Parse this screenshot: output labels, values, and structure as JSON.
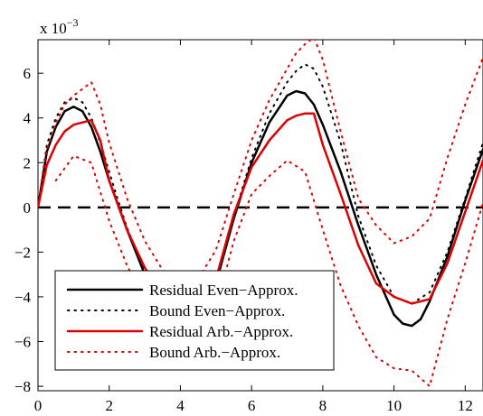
{
  "chart_data": {
    "type": "line",
    "title": "",
    "xlabel": "",
    "ylabel": "",
    "y_multiplier_label": "x 10",
    "y_multiplier_exponent": "−3",
    "xlim": [
      0,
      12.5
    ],
    "ylim": [
      -8.2,
      7.5
    ],
    "x_ticks": [
      0,
      2,
      4,
      6,
      8,
      10,
      12
    ],
    "y_ticks": [
      -8,
      -6,
      -4,
      -2,
      0,
      2,
      4,
      6
    ],
    "x_tick_labels": [
      "0",
      "2",
      "4",
      "6",
      "8",
      "10",
      "12"
    ],
    "y_tick_labels": [
      "−8",
      "−6",
      "−4",
      "−2",
      "0",
      "2",
      "4",
      "6"
    ],
    "grid": false,
    "legend_position": "bottom-left",
    "reference_line": {
      "y": 0,
      "style": "dashed",
      "color": "#000000"
    },
    "series": [
      {
        "name": "Residual Even−Approx.",
        "color": "#000000",
        "style": "solid",
        "x": [
          0,
          0.25,
          0.5,
          0.75,
          1.0,
          1.25,
          1.5,
          1.75,
          2.0,
          2.25,
          2.5,
          3.0,
          3.5,
          4.0,
          4.5,
          5.0,
          5.5,
          6.0,
          6.5,
          7.0,
          7.25,
          7.5,
          7.75,
          8.0,
          8.5,
          9.0,
          9.5,
          10.0,
          10.25,
          10.5,
          10.75,
          11.0,
          11.5,
          12.0,
          12.5
        ],
        "y": [
          0,
          2.5,
          3.6,
          4.3,
          4.5,
          4.3,
          3.6,
          2.5,
          1.2,
          0.1,
          -1.0,
          -3.0,
          -4.6,
          -5.4,
          -5.2,
          -3.4,
          -0.5,
          2.0,
          3.8,
          5.0,
          5.2,
          5.1,
          4.6,
          3.7,
          1.6,
          -0.8,
          -3.0,
          -4.8,
          -5.2,
          -5.3,
          -5.0,
          -4.2,
          -2.2,
          0.3,
          2.6
        ]
      },
      {
        "name": "Bound Even−Approx.",
        "color": "#000000",
        "style": "dotted",
        "x": [
          0,
          0.25,
          0.5,
          0.75,
          1.0,
          1.25,
          1.5,
          1.75,
          2.0,
          2.25,
          2.5,
          3.0,
          3.5,
          4.0,
          4.5,
          5.0,
          5.5,
          6.0,
          6.5,
          7.0,
          7.25,
          7.5,
          7.75,
          8.0,
          8.5,
          9.0,
          9.5,
          10.0,
          10.5,
          11.0,
          11.5,
          12.0,
          12.5
        ],
        "y": [
          0,
          2.8,
          4.0,
          4.7,
          4.9,
          4.7,
          4.0,
          2.9,
          1.6,
          0.3,
          -0.9,
          -2.9,
          -4.5,
          -5.3,
          -5.1,
          -3.3,
          -0.4,
          2.2,
          4.2,
          5.6,
          6.1,
          6.4,
          6.2,
          5.4,
          2.9,
          -0.4,
          -2.6,
          -4.0,
          -4.3,
          -3.8,
          -2.0,
          0.4,
          2.9
        ]
      },
      {
        "name": "Residual Arb.−Approx.",
        "color": "#dd0000",
        "style": "solid",
        "x": [
          0,
          0.25,
          0.5,
          0.75,
          1.0,
          1.25,
          1.5,
          1.75,
          2.0,
          2.5,
          3.0,
          3.5,
          4.0,
          4.5,
          5.0,
          5.5,
          6.0,
          6.5,
          7.0,
          7.25,
          7.5,
          7.75,
          8.0,
          8.5,
          9.0,
          9.5,
          10.0,
          10.5,
          11.0,
          11.5,
          12.0,
          12.5
        ],
        "y": [
          0,
          1.9,
          2.8,
          3.4,
          3.7,
          3.8,
          3.9,
          3.0,
          1.2,
          -1.0,
          -2.7,
          -3.9,
          -4.6,
          -4.5,
          -3.2,
          -0.3,
          1.8,
          3.0,
          3.9,
          4.1,
          4.2,
          4.2,
          2.8,
          0.6,
          -1.7,
          -3.4,
          -4.0,
          -4.3,
          -4.1,
          -2.5,
          -0.2,
          2.1
        ]
      },
      {
        "name": "Bound Arb.−Approx.",
        "color": "#dd0000",
        "style": "dotted",
        "x": [
          0,
          0.25,
          0.5,
          0.75,
          1.0,
          1.25,
          1.5,
          1.75,
          2.0,
          2.5,
          3.0,
          3.5,
          4.0,
          4.5,
          5.0,
          5.5,
          6.0,
          6.5,
          7.0,
          7.25,
          7.5,
          7.75,
          8.0,
          8.5,
          9.0,
          9.5,
          10.0,
          10.5,
          11.0,
          11.5,
          12.0,
          12.5
        ],
        "y": [
          0,
          2.6,
          3.8,
          4.6,
          5.0,
          5.3,
          5.6,
          4.6,
          2.9,
          0.4,
          -1.5,
          -2.8,
          -3.4,
          -3.2,
          -1.9,
          0.6,
          3.0,
          4.8,
          6.2,
          6.9,
          7.3,
          7.6,
          6.6,
          3.4,
          0.4,
          -0.8,
          -1.6,
          -1.3,
          -0.5,
          2.2,
          4.6,
          6.7
        ]
      },
      {
        "name": "",
        "color": "#dd0000",
        "style": "dotted",
        "x": [
          0.5,
          1.0,
          1.5,
          2.0,
          2.5,
          3.0,
          3.5,
          4.0,
          4.5,
          5.0,
          5.5,
          6.0,
          6.5,
          7.0,
          7.5,
          8.0,
          8.5,
          9.0,
          9.5,
          10.0,
          10.5,
          11.0,
          11.5,
          12.0,
          12.5
        ],
        "y": [
          1.2,
          2.3,
          2.0,
          -0.6,
          -2.6,
          -4.1,
          -5.2,
          -5.9,
          -5.8,
          -4.5,
          -1.5,
          0.6,
          1.4,
          2.1,
          1.6,
          -1.0,
          -3.5,
          -5.3,
          -6.7,
          -7.2,
          -7.3,
          -8.0,
          -5.0,
          -2.5,
          0.2
        ]
      }
    ]
  }
}
